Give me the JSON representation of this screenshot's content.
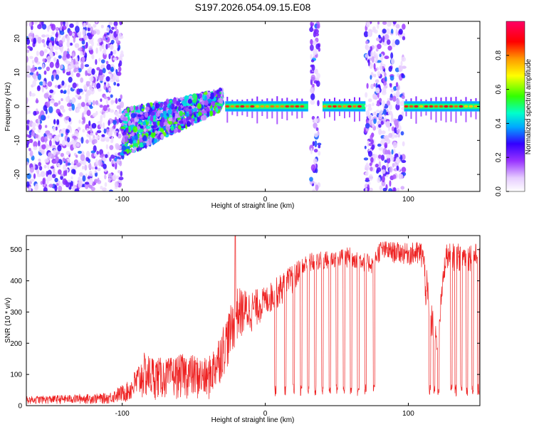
{
  "title": "S197.2026.054.09.15.E08",
  "colors": {
    "snr_line": "#ee2222",
    "axis": "#000000",
    "background": "#ffffff"
  },
  "chart_data": [
    {
      "type": "heatmap",
      "title": "S197.2026.054.09.15.E08",
      "xlabel": "Height of straight line (km)",
      "ylabel": "Frequency (Hz)",
      "xlim": [
        -167,
        150
      ],
      "ylim": [
        -25,
        25
      ],
      "xticks": [
        -100,
        0,
        100
      ],
      "yticks": [
        -20,
        -10,
        0,
        10,
        20
      ],
      "colorbar": {
        "label": "Normalized spectral amplitude",
        "range": [
          0,
          1
        ],
        "ticks": [
          "0.0",
          "0.2",
          "0.4",
          "0.6",
          "0.8"
        ],
        "tick_values": [
          0,
          0.2,
          0.4,
          0.6,
          0.8
        ]
      },
      "regions": [
        {
          "x": [
            -167,
            -100
          ],
          "f": [
            -25,
            25
          ],
          "amp": 0.15,
          "desc": "broadband scatter"
        },
        {
          "x": [
            -100,
            -30
          ],
          "f": [
            -12,
            4
          ],
          "amp": 0.35,
          "desc": "rising band"
        },
        {
          "x": [
            -28,
            30
          ],
          "f": [
            -1,
            1
          ],
          "amp": 0.9,
          "desc": "strong tone near 0 Hz"
        },
        {
          "x": [
            32,
            38
          ],
          "f": [
            -25,
            25
          ],
          "amp": 0.2,
          "desc": "broadband burst"
        },
        {
          "x": [
            40,
            70
          ],
          "f": [
            -1,
            1
          ],
          "amp": 0.9,
          "desc": "strong tone near 0 Hz"
        },
        {
          "x": [
            70,
            97
          ],
          "f": [
            -25,
            25
          ],
          "amp": 0.15,
          "desc": "broadband scatter"
        },
        {
          "x": [
            97,
            150
          ],
          "f": [
            -1,
            1
          ],
          "amp": 0.85,
          "desc": "strong tone near 0 Hz"
        }
      ]
    },
    {
      "type": "line",
      "xlabel": "Height of straight line (km)",
      "ylabel": "SNR (10 * v/v)",
      "xlim": [
        -167,
        150
      ],
      "ylim": [
        0,
        545
      ],
      "xticks": [
        -100,
        0,
        100
      ],
      "yticks": [
        0,
        100,
        200,
        300,
        400,
        500
      ],
      "series": [
        {
          "name": "SNR",
          "envelope": [
            {
              "x": -167,
              "lo": 5,
              "hi": 30
            },
            {
              "x": -110,
              "lo": 5,
              "hi": 40
            },
            {
              "x": -95,
              "lo": 10,
              "hi": 80
            },
            {
              "x": -85,
              "lo": 15,
              "hi": 170
            },
            {
              "x": -70,
              "lo": 20,
              "hi": 150
            },
            {
              "x": -55,
              "lo": 20,
              "hi": 170
            },
            {
              "x": -40,
              "lo": 10,
              "hi": 150
            },
            {
              "x": -35,
              "lo": 40,
              "hi": 200
            },
            {
              "x": -25,
              "lo": 130,
              "hi": 310
            },
            {
              "x": -20,
              "lo": 200,
              "hi": 380
            },
            {
              "x": -10,
              "lo": 230,
              "hi": 370
            },
            {
              "x": 0,
              "lo": 280,
              "hi": 380
            },
            {
              "x": 15,
              "lo": 330,
              "hi": 440
            },
            {
              "x": 30,
              "lo": 420,
              "hi": 490
            },
            {
              "x": 50,
              "lo": 440,
              "hi": 500
            },
            {
              "x": 60,
              "lo": 440,
              "hi": 510
            },
            {
              "x": 75,
              "lo": 420,
              "hi": 480
            },
            {
              "x": 80,
              "lo": 460,
              "hi": 530
            },
            {
              "x": 100,
              "lo": 450,
              "hi": 520
            },
            {
              "x": 110,
              "lo": 430,
              "hi": 530
            },
            {
              "x": 114,
              "lo": 200,
              "hi": 400
            },
            {
              "x": 120,
              "lo": 160,
              "hi": 230
            },
            {
              "x": 126,
              "lo": 430,
              "hi": 520
            },
            {
              "x": 150,
              "lo": 430,
              "hi": 520
            }
          ],
          "dropouts_x": [
            7,
            14,
            20,
            25,
            30,
            35,
            40,
            45,
            50,
            55,
            60,
            65,
            70,
            76,
            115,
            118,
            121,
            130,
            133,
            137,
            141,
            145,
            149
          ],
          "dropout_min": 30,
          "spike_x": -21,
          "spike_y": 545
        }
      ]
    }
  ]
}
